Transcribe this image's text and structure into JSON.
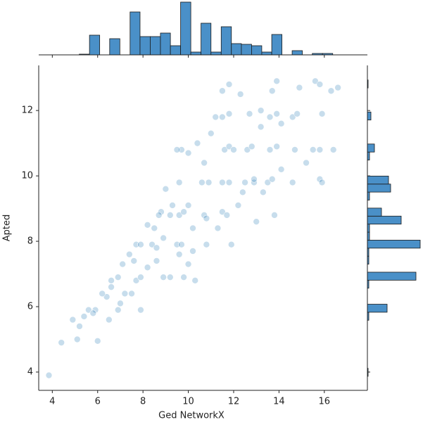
{
  "chart_data": [
    {
      "type": "scatter",
      "x_label": "Ged NetworkX",
      "y_label": "Apted",
      "color": "#1f77b4",
      "xlim": [
        3.4,
        17.9
      ],
      "ylim": [
        3.44,
        13.38
      ],
      "xticks": [
        4,
        6,
        8,
        10,
        12,
        14,
        16
      ],
      "yticks": [
        4,
        6,
        8,
        10,
        12
      ],
      "x": [
        3.85,
        4.4,
        4.9,
        5.2,
        5.4,
        5.6,
        5.9,
        6.0,
        5.8,
        6.5,
        6.9,
        6.4,
        6.6,
        6.9,
        6.6,
        7.2,
        7.0,
        7.5,
        7.7,
        7.9,
        7.9,
        7.6,
        7.7,
        7.9,
        7.4,
        8.4,
        8.6,
        8.2,
        8.6,
        8.9,
        8.5,
        8.8,
        8.7,
        8.2,
        9.0,
        9.6,
        9.7,
        9.5,
        9.6,
        9.8,
        9.5,
        9.6,
        9.7,
        9.8,
        9.2,
        10.0,
        10.2,
        10.0,
        10.3,
        10.7,
        10.8,
        10.6,
        10.9,
        10.8,
        10.2,
        10.7,
        10.4,
        11.0,
        11.5,
        11.7,
        11.5,
        11.8,
        11.6,
        11.8,
        11.5,
        11.8,
        11.5,
        11.8,
        11.9,
        11.3,
        12.2,
        12.5,
        12.6,
        12.8,
        12.7,
        12.3,
        12.4,
        12.9,
        13.3,
        13.5,
        13.7,
        13.6,
        13.9,
        13.6,
        13.9,
        13.7,
        13.9,
        13.2,
        13.8,
        13.0,
        14.1,
        14.6,
        14.7,
        14.6,
        14.8,
        14.1,
        14.9,
        15.2,
        15.5,
        15.8,
        15.8,
        15.9,
        15.9,
        15.6,
        15.8,
        16.3,
        16.6,
        16.4,
        12.0,
        12.9,
        10.0,
        9.3,
        8.9,
        7.1,
        6.2,
        5.1,
        13.2,
        9.2,
        11.2
      ],
      "y": [
        3.9,
        4.9,
        5.6,
        5.4,
        5.7,
        5.9,
        5.9,
        4.95,
        5.8,
        5.6,
        5.9,
        6.3,
        6.8,
        6.9,
        6.6,
        6.4,
        6.1,
        6.4,
        6.8,
        6.9,
        5.9,
        7.4,
        7.9,
        7.9,
        7.6,
        7.9,
        7.8,
        7.2,
        7.4,
        6.9,
        8.4,
        8.9,
        8.8,
        8.5,
        9.6,
        9.8,
        10.8,
        10.8,
        8.8,
        8.9,
        7.9,
        7.6,
        7.9,
        6.9,
        6.9,
        9.1,
        8.4,
        7.3,
        6.8,
        8.8,
        8.7,
        9.8,
        9.8,
        7.9,
        7.7,
        10.4,
        11.0,
        11.3,
        8.9,
        8.8,
        9.8,
        9.8,
        10.8,
        10.9,
        11.8,
        11.9,
        12.6,
        12.8,
        7.9,
        8.4,
        9.1,
        9.8,
        10.8,
        10.9,
        11.9,
        12.5,
        9.5,
        9.8,
        9.5,
        9.8,
        9.9,
        10.8,
        10.9,
        11.8,
        11.9,
        12.6,
        12.9,
        11.5,
        8.8,
        8.6,
        10.2,
        9.8,
        10.8,
        11.8,
        11.9,
        11.6,
        12.7,
        10.4,
        10.8,
        10.8,
        9.9,
        9.8,
        11.9,
        12.9,
        12.8,
        12.6,
        12.7,
        10.8,
        10.8,
        9.9,
        10.7,
        9.1,
        8.1,
        7.3,
        6.4,
        5.0,
        12.0,
        8.8,
        11.8
      ]
    },
    {
      "type": "histogram",
      "orientation": "vertical",
      "color": "#4a90c8",
      "ylim": [
        0,
        76
      ],
      "bins": [
        3.85,
        4.3,
        4.74,
        5.19,
        5.64,
        6.09,
        6.53,
        6.98,
        7.43,
        7.87,
        8.32,
        8.77,
        9.21,
        9.66,
        10.11,
        10.56,
        11.0,
        11.45,
        11.9,
        12.34,
        12.79,
        13.24,
        13.68,
        14.13,
        14.58,
        15.03,
        15.47,
        15.92,
        16.37
      ],
      "values": [
        0,
        0,
        0,
        1,
        28,
        0,
        23,
        0,
        61,
        26,
        26,
        31,
        13,
        75,
        4,
        45,
        4,
        40,
        16,
        15,
        13,
        4,
        29,
        0,
        6,
        0,
        2,
        2
      ]
    },
    {
      "type": "histogram",
      "orientation": "horizontal",
      "color": "#4a90c8",
      "xlim": [
        0,
        76
      ],
      "bins": [
        3.87,
        4.115,
        4.36,
        4.605,
        4.85,
        5.095,
        5.34,
        5.585,
        5.83,
        6.075,
        6.32,
        6.565,
        6.81,
        7.055,
        7.3,
        7.545,
        7.79,
        8.035,
        8.28,
        8.525,
        8.77,
        9.015,
        9.26,
        9.505,
        9.75,
        9.995,
        10.24,
        10.485,
        10.73,
        10.975,
        11.22,
        11.465,
        11.71,
        11.955,
        12.2,
        12.445,
        12.69,
        12.935
      ],
      "values": [
        1,
        0,
        0,
        0,
        0,
        0,
        0,
        2,
        28,
        0,
        0,
        2,
        69,
        0,
        2,
        2,
        75,
        3,
        3,
        48,
        20,
        0,
        3,
        33,
        30,
        0,
        0,
        3,
        10,
        0,
        0,
        0,
        5,
        0,
        0,
        0,
        1
      ]
    }
  ]
}
